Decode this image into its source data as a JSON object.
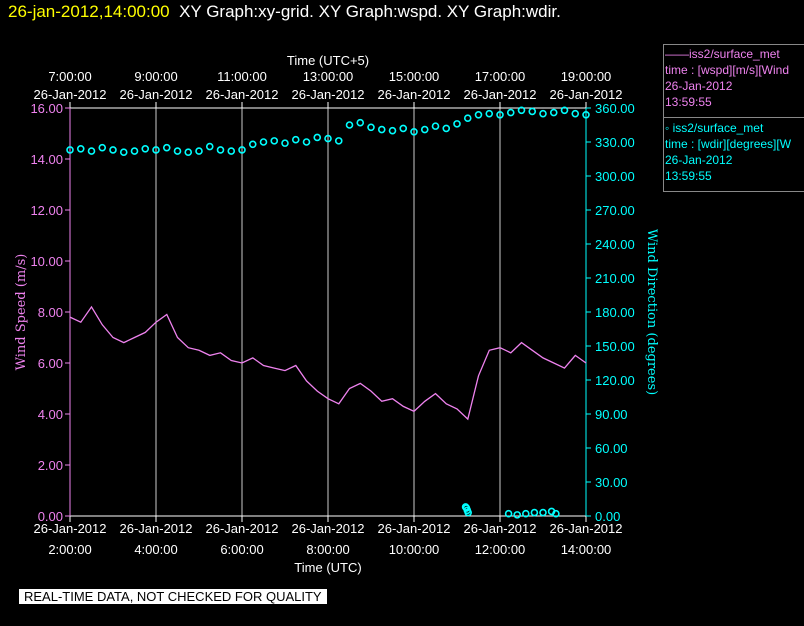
{
  "header": {
    "timestamp": "26-jan-2012,14:00:00",
    "graphs": "XY Graph:xy-grid.  XY Graph:wspd.  XY Graph:wdir."
  },
  "qc_banner": "REAL-TIME DATA, NOT CHECKED FOR QUALITY",
  "legend": [
    {
      "name_line": "——iss2/surface_met",
      "var": "time : [wspd][m/s][Wind",
      "date": "26-Jan-2012",
      "time": "13:59:55",
      "color": "#ee82ee"
    },
    {
      "name_line": "◦  iss2/surface_met",
      "var": "time : [wdir][degrees][W",
      "date": "26-Jan-2012",
      "time": "13:59:55",
      "color": "#00ffff"
    }
  ],
  "chart_data": {
    "type": "line",
    "top_axis_title": "Time (UTC+5)",
    "bottom_axis_title": "Time (UTC)",
    "ylabel": "Wind Speed (m/s)",
    "y2label": "Wind Direction (degrees)",
    "xlim": [
      2.0,
      14.0
    ],
    "ylim": [
      0,
      16
    ],
    "y2lim": [
      0,
      360
    ],
    "xticks_bottom": [
      {
        "x": 2,
        "date": "26-Jan-2012",
        "time": "2:00:00"
      },
      {
        "x": 4,
        "date": "26-Jan-2012",
        "time": "4:00:00"
      },
      {
        "x": 6,
        "date": "26-Jan-2012",
        "time": "6:00:00"
      },
      {
        "x": 8,
        "date": "26-Jan-2012",
        "time": "8:00:00"
      },
      {
        "x": 10,
        "date": "26-Jan-2012",
        "time": "10:00:00"
      },
      {
        "x": 12,
        "date": "26-Jan-2012",
        "time": "12:00:00"
      },
      {
        "x": 14,
        "date": "26-Jan-2012",
        "time": "14:00:00"
      }
    ],
    "xticks_top": [
      {
        "x": 2,
        "time": "7:00:00",
        "date": "26-Jan-2012"
      },
      {
        "x": 4,
        "time": "9:00:00",
        "date": "26-Jan-2012"
      },
      {
        "x": 6,
        "time": "11:00:00",
        "date": "26-Jan-2012"
      },
      {
        "x": 8,
        "time": "13:00:00",
        "date": "26-Jan-2012"
      },
      {
        "x": 10,
        "time": "15:00:00",
        "date": "26-Jan-2012"
      },
      {
        "x": 12,
        "time": "17:00:00",
        "date": "26-Jan-2012"
      },
      {
        "x": 14,
        "time": "19:00:00",
        "date": "26-Jan-2012"
      }
    ],
    "yticks_left": [
      "0.00",
      "2.00",
      "4.00",
      "6.00",
      "8.00",
      "10.00",
      "12.00",
      "14.00",
      "16.00"
    ],
    "yticks_right": [
      "0.00",
      "30.00",
      "60.00",
      "90.00",
      "120.00",
      "150.00",
      "180.00",
      "210.00",
      "240.00",
      "270.00",
      "300.00",
      "330.00",
      "360.00"
    ],
    "grid": "vertical",
    "colors": {
      "wspd": "#ee82ee",
      "wdir": "#00ffff",
      "grid": "#ffffff"
    },
    "series": [
      {
        "name": "iss2/surface_met wspd",
        "style": "line",
        "axis": "left",
        "x": [
          2.0,
          2.25,
          2.5,
          2.75,
          3.0,
          3.25,
          3.5,
          3.75,
          4.0,
          4.25,
          4.5,
          4.75,
          5.0,
          5.25,
          5.5,
          5.75,
          6.0,
          6.25,
          6.5,
          6.75,
          7.0,
          7.25,
          7.5,
          7.75,
          8.0,
          8.25,
          8.5,
          8.75,
          9.0,
          9.25,
          9.5,
          9.75,
          10.0,
          10.25,
          10.5,
          10.75,
          11.0,
          11.25,
          11.5,
          11.75,
          12.0,
          12.25,
          12.5,
          12.75,
          13.0,
          13.25,
          13.5,
          13.75,
          14.0
        ],
        "values": [
          7.8,
          7.6,
          8.2,
          7.5,
          7.0,
          6.8,
          7.0,
          7.2,
          7.6,
          7.9,
          7.0,
          6.6,
          6.5,
          6.3,
          6.4,
          6.1,
          6.0,
          6.2,
          5.9,
          5.8,
          5.7,
          5.9,
          5.3,
          4.9,
          4.6,
          4.4,
          5.0,
          5.2,
          4.9,
          4.5,
          4.6,
          4.3,
          4.1,
          4.5,
          4.8,
          4.4,
          4.2,
          3.8,
          5.5,
          6.5,
          6.6,
          6.4,
          6.8,
          6.5,
          6.2,
          6.0,
          5.8,
          6.3,
          6.0
        ]
      },
      {
        "name": "iss2/surface_met wdir",
        "style": "points",
        "axis": "right",
        "x": [
          2.0,
          2.25,
          2.5,
          2.75,
          3.0,
          3.25,
          3.5,
          3.75,
          4.0,
          4.25,
          4.5,
          4.75,
          5.0,
          5.25,
          5.5,
          5.75,
          6.0,
          6.25,
          6.5,
          6.75,
          7.0,
          7.25,
          7.5,
          7.75,
          8.0,
          8.25,
          8.5,
          8.75,
          9.0,
          9.25,
          9.5,
          9.75,
          10.0,
          10.25,
          10.5,
          10.75,
          11.0,
          11.25,
          11.5,
          11.75,
          12.0,
          12.25,
          12.5,
          12.75,
          13.0,
          13.25,
          13.5,
          13.75,
          14.0
        ],
        "values": [
          323,
          324,
          322,
          325,
          323,
          321,
          322,
          324,
          323,
          325,
          322,
          321,
          322,
          326,
          323,
          322,
          323,
          328,
          330,
          331,
          329,
          332,
          330,
          334,
          333,
          331,
          345,
          347,
          343,
          341,
          340,
          342,
          339,
          341,
          344,
          342,
          346,
          351,
          354,
          355,
          354,
          356,
          358,
          357,
          355,
          356,
          358,
          355,
          354
        ]
      },
      {
        "name": "iss2/surface_met wdir wrap",
        "style": "points",
        "axis": "right",
        "x": [
          11.2,
          11.22,
          11.24,
          11.26,
          12.2,
          12.4,
          12.6,
          12.8,
          13.0,
          13.2,
          13.3
        ],
        "values": [
          8,
          7,
          5,
          3,
          2,
          1,
          2,
          3,
          3,
          4,
          2
        ]
      }
    ]
  }
}
